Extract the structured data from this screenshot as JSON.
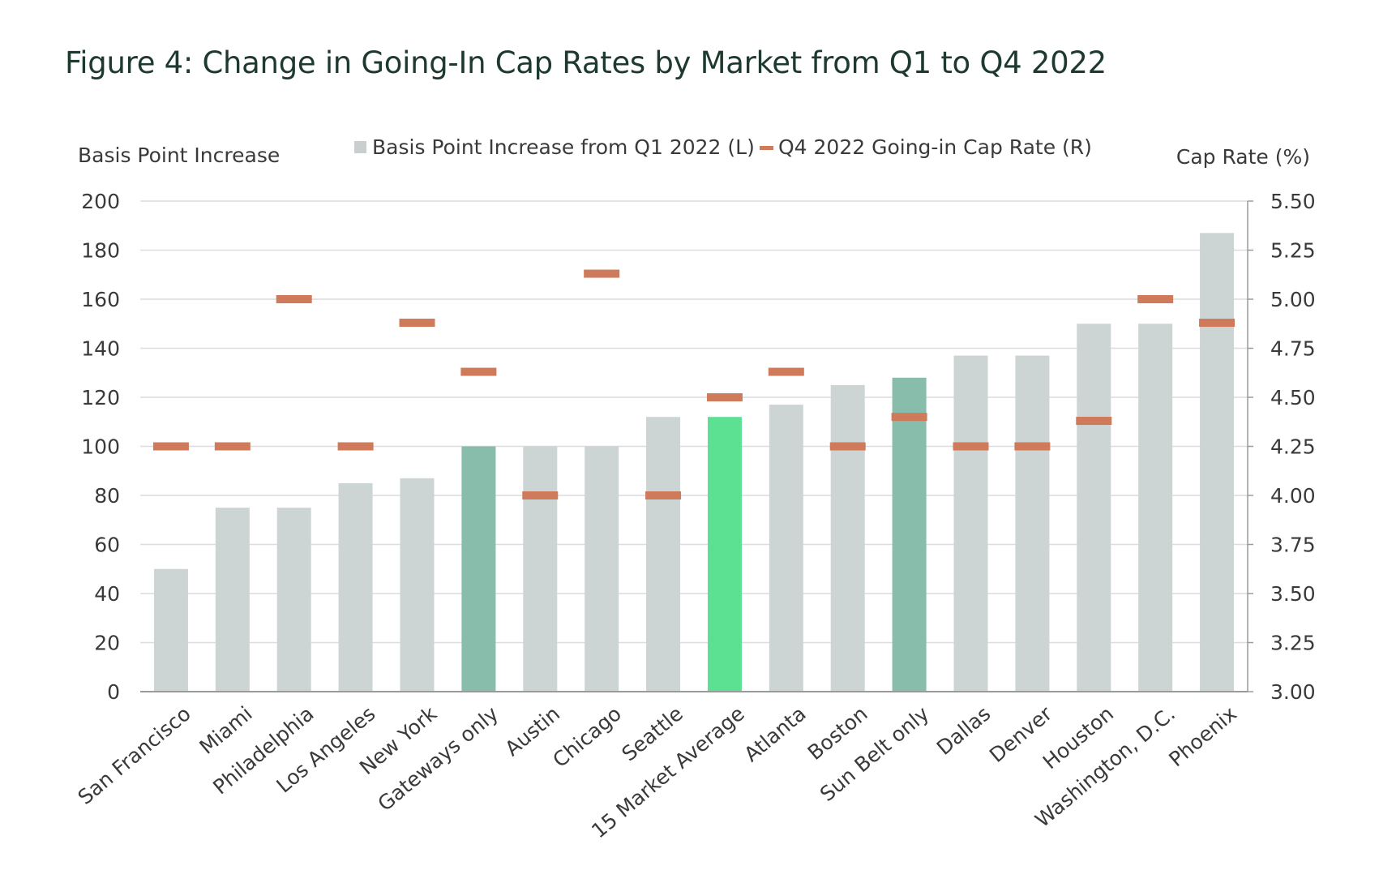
{
  "title": "Figure 4: Change in Going-In Cap Rates by Market from Q1 to Q4 2022",
  "chart_data": {
    "type": "bar",
    "title": "Figure 4: Change in Going-In Cap Rates by Market from Q1 to Q4 2022",
    "ylabel": "Basis Point Increase",
    "y2label": "Cap Rate (%)",
    "ylim": [
      0,
      200
    ],
    "y2lim": [
      3.0,
      5.5
    ],
    "yticks": [
      "0",
      "20",
      "40",
      "60",
      "80",
      "100",
      "120",
      "140",
      "160",
      "180",
      "200"
    ],
    "y2ticks": [
      "3.00",
      "3.25",
      "3.50",
      "3.75",
      "4.00",
      "4.25",
      "4.50",
      "4.75",
      "5.00",
      "5.25",
      "5.50"
    ],
    "grid": true,
    "legend_position": "top-center",
    "categories": [
      "San Francisco",
      "Miami",
      "Philadelphia",
      "Los Angeles",
      "New York",
      "Gateways only",
      "Austin",
      "Chicago",
      "Seattle",
      "15 Market Average",
      "Atlanta",
      "Boston",
      "Sun Belt only",
      "Dallas",
      "Denver",
      "Houston",
      "Washington, D.C.",
      "Phoenix"
    ],
    "series": [
      {
        "name": "Basis Point Increase from Q1 2022 (L)",
        "type": "bar",
        "axis": "left",
        "values": [
          50,
          75,
          75,
          85,
          87,
          100,
          100,
          100,
          112,
          112,
          117,
          125,
          128,
          137,
          137,
          150,
          150,
          187
        ]
      },
      {
        "name": "Q4 2022 Going-in Cap Rate (R)",
        "type": "marker",
        "axis": "right",
        "values": [
          4.25,
          4.25,
          5.0,
          4.25,
          4.88,
          4.63,
          4.0,
          5.13,
          4.0,
          4.5,
          4.63,
          4.25,
          4.4,
          4.25,
          4.25,
          4.38,
          5.0,
          4.88
        ]
      }
    ],
    "colors": {
      "bar_default": "#cdd4d4",
      "bar_subgroup": "#88bcab",
      "bar_average": "#5ce193",
      "marker": "#cf7a5a",
      "legend_square": "#c9cfcf",
      "grid": "#dcdcdc",
      "axis_text": "#3a3a3a",
      "title": "#1e3a2e"
    },
    "bar_color_keys": [
      "bar_default",
      "bar_default",
      "bar_default",
      "bar_default",
      "bar_default",
      "bar_subgroup",
      "bar_default",
      "bar_default",
      "bar_default",
      "bar_average",
      "bar_default",
      "bar_default",
      "bar_subgroup",
      "bar_default",
      "bar_default",
      "bar_default",
      "bar_default",
      "bar_default"
    ]
  }
}
